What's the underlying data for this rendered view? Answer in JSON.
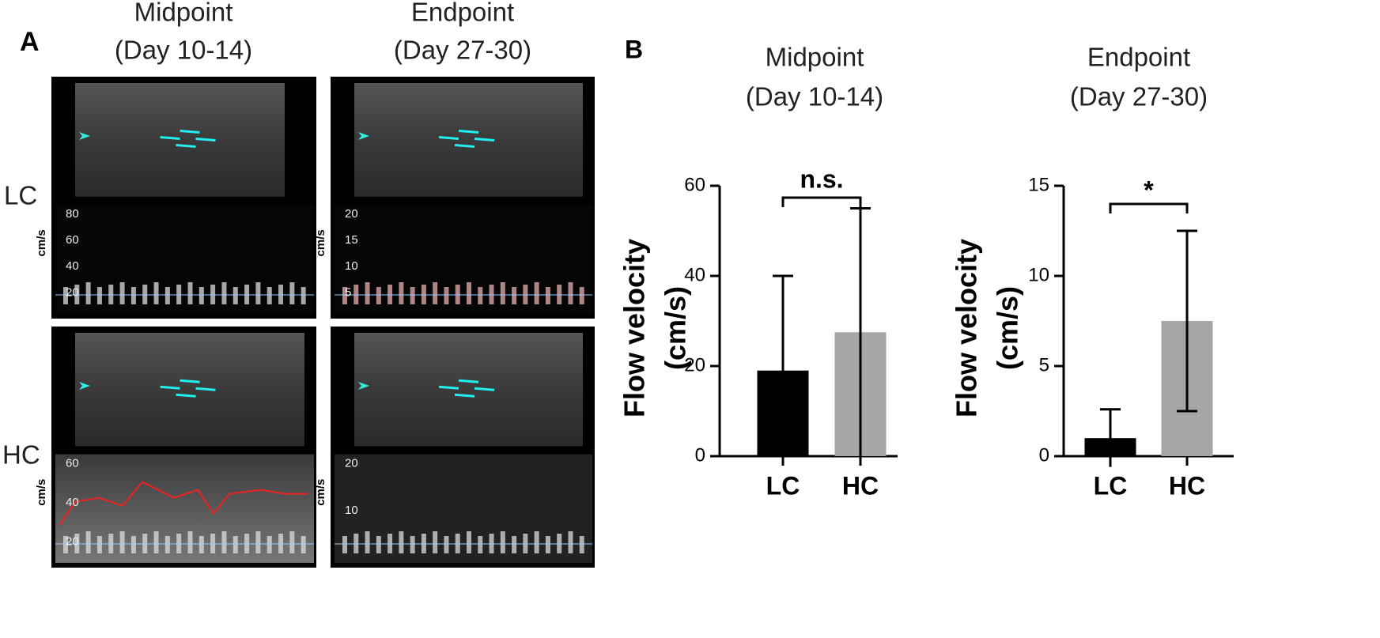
{
  "panel_a": {
    "label": "A",
    "columns": [
      {
        "title": "Midpoint",
        "subtitle": "(Day 10-14)"
      },
      {
        "title": "Endpoint",
        "subtitle": "(Day 27-30)"
      }
    ],
    "rows": [
      "LC",
      "HC"
    ],
    "images": [
      {
        "unit": "cm/s",
        "ticks": [
          "80",
          "60",
          "40",
          "20"
        ]
      },
      {
        "unit": "cm/s",
        "ticks": [
          "20",
          "15",
          "10",
          "5"
        ]
      },
      {
        "unit": "cm/s",
        "ticks": [
          "60",
          "40",
          "20"
        ]
      },
      {
        "unit": "cm/s",
        "ticks": [
          "20",
          "10"
        ]
      }
    ]
  },
  "panel_b": {
    "label": "B"
  },
  "chart_data": [
    {
      "type": "bar",
      "title": "Midpoint",
      "subtitle": "(Day 10-14)",
      "ylabel": [
        "Flow velocity",
        "(cm/s)"
      ],
      "categories": [
        "LC",
        "HC"
      ],
      "values": [
        19,
        27.5
      ],
      "errors": [
        21,
        27.5
      ],
      "colors": [
        "#000000",
        "#a6a6a6"
      ],
      "ylim": [
        0,
        60
      ],
      "yticks": [
        0,
        20,
        40,
        60
      ],
      "annotation": "n.s."
    },
    {
      "type": "bar",
      "title": "Endpoint",
      "subtitle": "(Day 27-30)",
      "ylabel": [
        "Flow velocity",
        "(cm/s)"
      ],
      "categories": [
        "LC",
        "HC"
      ],
      "values": [
        1,
        7.5
      ],
      "errors": [
        1.6,
        5
      ],
      "colors": [
        "#000000",
        "#a6a6a6"
      ],
      "ylim": [
        0,
        15
      ],
      "yticks": [
        0,
        5,
        10,
        15
      ],
      "annotation": "*"
    }
  ]
}
